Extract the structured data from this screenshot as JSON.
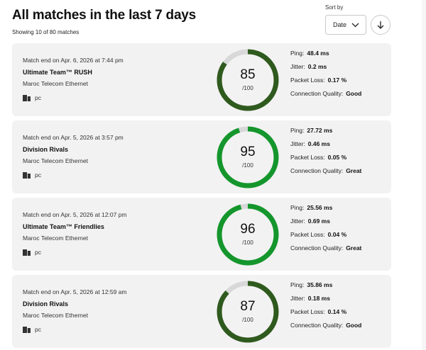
{
  "header": {
    "title": "All matches in the last 7 days",
    "subtitle": "Showing 10 of 80 matches",
    "sort_label": "Sort by",
    "sort_value": "Date"
  },
  "stat_labels": {
    "ping": "Ping:",
    "jitter": "Jitter:",
    "packet_loss": "Packet Loss:",
    "quality": "Connection Quality:"
  },
  "colors": {
    "good": "#2f5a1e",
    "great": "#14962c",
    "track": "#d8d8d8",
    "card_bg": "#f2f2f2"
  },
  "matches": [
    {
      "ended": "Match end on Apr. 6, 2026 at 7:44 pm",
      "mode": "Ultimate Team™ RUSH",
      "isp": "Maroc Telecom Ethernet",
      "platform": "pc",
      "score": "85",
      "score_max": "/100",
      "score_fraction": 0.85,
      "ping": "48.4 ms",
      "jitter": "0.2 ms",
      "packet_loss": "0.17 %",
      "quality": "Good"
    },
    {
      "ended": "Match end on Apr. 5, 2026 at 3:57 pm",
      "mode": "Division Rivals",
      "isp": "Maroc Telecom Ethernet",
      "platform": "pc",
      "score": "95",
      "score_max": "/100",
      "score_fraction": 0.95,
      "ping": "27.72 ms",
      "jitter": "0.46 ms",
      "packet_loss": "0.05 %",
      "quality": "Great"
    },
    {
      "ended": "Match end on Apr. 5, 2026 at 12:07 pm",
      "mode": "Ultimate Team™ Friendlies",
      "isp": "Maroc Telecom Ethernet",
      "platform": "pc",
      "score": "96",
      "score_max": "/100",
      "score_fraction": 0.96,
      "ping": "25.56 ms",
      "jitter": "0.69 ms",
      "packet_loss": "0.04 %",
      "quality": "Great"
    },
    {
      "ended": "Match end on Apr. 5, 2026 at 12:59 am",
      "mode": "Division Rivals",
      "isp": "Maroc Telecom Ethernet",
      "platform": "pc",
      "score": "87",
      "score_max": "/100",
      "score_fraction": 0.87,
      "ping": "35.86 ms",
      "jitter": "0.18 ms",
      "packet_loss": "0.14 %",
      "quality": "Good"
    }
  ]
}
